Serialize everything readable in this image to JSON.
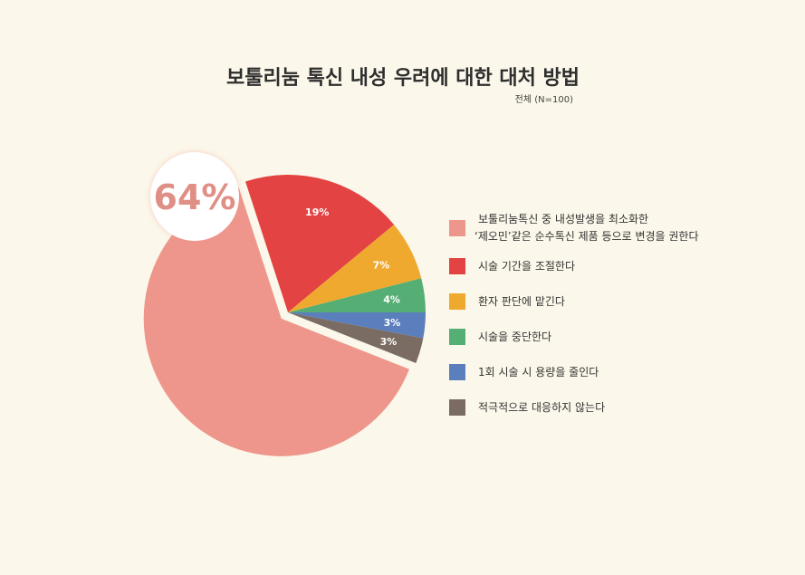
{
  "chart_data": {
    "type": "pie",
    "title": "보툴리눔 톡신 내성 우려에 대한 대처 방법",
    "subtitle": "전체 (N=100)",
    "categories": [
      "보툴리눔톡신 중 내성발생을 최소화한 ‘제오민’같은 순수톡신 제품 등으로 변경을 권한다",
      "시술 기간을 조절한다",
      "환자 판단에 맡긴다",
      "시술을 중단한다",
      "1회 시술 시 용량을 줄인다",
      "적극적으로 대응하지 않는다"
    ],
    "legend_lines": [
      [
        "보툴리눔톡신 중 내성발생을 최소화한",
        "‘제오민’같은 순수톡신 제품 등으로 변경을 권한다"
      ],
      [
        "시술 기간을 조절한다"
      ],
      [
        "환자 판단에 맡긴다"
      ],
      [
        "시술을 중단한다"
      ],
      [
        "1회 시술 시 용량을 줄인다"
      ],
      [
        "적극적으로 대응하지 않는다"
      ]
    ],
    "values": [
      64,
      19,
      7,
      4,
      3,
      3
    ],
    "value_labels": [
      "64%",
      "19%",
      "7%",
      "4%",
      "3%",
      "3%"
    ],
    "colors": [
      "#ee968c",
      "#e34342",
      "#f0a92f",
      "#55ae74",
      "#5b7fbd",
      "#7a6c63"
    ],
    "legend_position": "right",
    "highlight_label": "64%"
  }
}
